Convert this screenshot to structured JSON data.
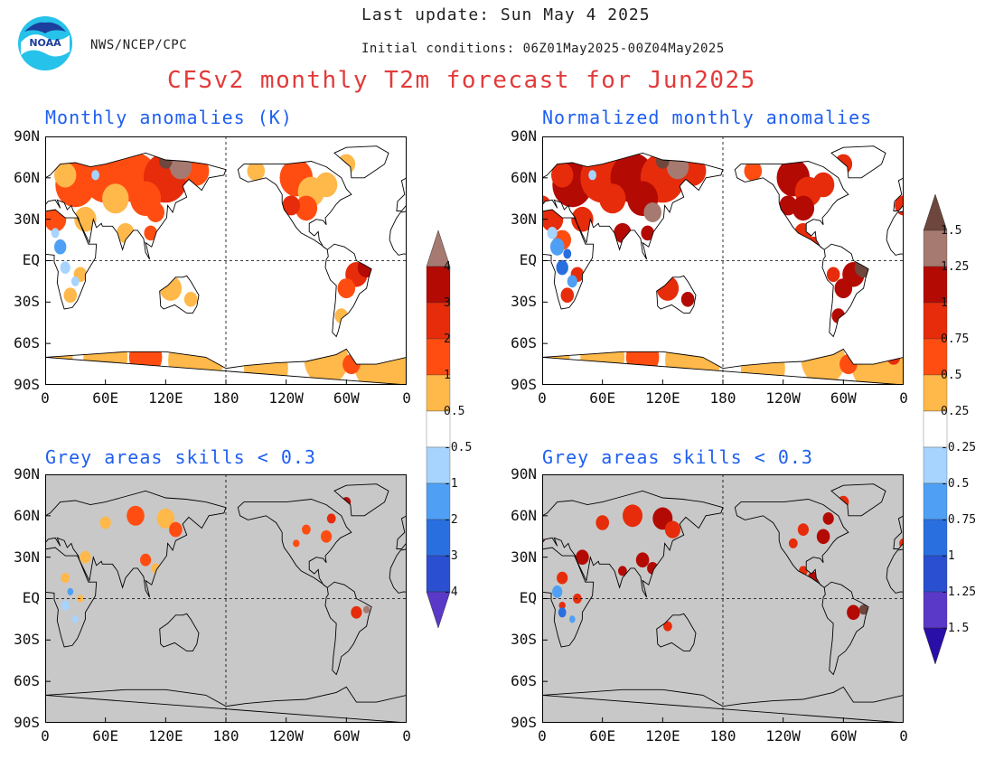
{
  "header": {
    "agency": "NWS/NCEP/CPC",
    "last_update": "Last update: Sun May 4 2025",
    "initial_conditions": "Initial conditions: 06Z01May2025-00Z04May2025",
    "title": "CFSv2 monthly T2m forecast for Jun2025"
  },
  "panels": {
    "top_left": {
      "title": "Monthly anomalies (K)"
    },
    "top_right": {
      "title": "Normalized monthly anomalies"
    },
    "bottom_left": {
      "title": "Grey areas skills < 0.3"
    },
    "bottom_right": {
      "title": "Grey areas skills < 0.3"
    }
  },
  "axes": {
    "lat_labels": [
      "90N",
      "60N",
      "30N",
      "EQ",
      "30S",
      "60S",
      "90S"
    ],
    "lon_labels": [
      "0",
      "60E",
      "120E",
      "180",
      "120W",
      "60W",
      "0"
    ]
  },
  "colorbar_left": {
    "labels": [
      "4",
      "3",
      "2",
      "1",
      "0.5",
      "-0.5",
      "-1",
      "-2",
      "-3",
      "-4"
    ]
  },
  "colorbar_right": {
    "labels": [
      "1.5",
      "1.25",
      "1",
      "0.75",
      "0.5",
      "0.25",
      "-0.25",
      "-0.5",
      "-0.75",
      "-1",
      "-1.25",
      "-1.5"
    ]
  },
  "colors": {
    "pos": [
      "#ffb84a",
      "#ff4d12",
      "#e62c0a",
      "#b40a04",
      "#a67a70",
      "#6e463c"
    ],
    "neg": [
      "#a6d4ff",
      "#4fa0f5",
      "#2a6fe0",
      "#2a4fd0",
      "#5a38c8",
      "#2a0ea8"
    ],
    "grey_mask": "#c8c8c8",
    "title_red": "#e23a3a",
    "panel_title_blue": "#1e5ff0"
  },
  "icons": {
    "logo": "noaa-logo"
  }
}
